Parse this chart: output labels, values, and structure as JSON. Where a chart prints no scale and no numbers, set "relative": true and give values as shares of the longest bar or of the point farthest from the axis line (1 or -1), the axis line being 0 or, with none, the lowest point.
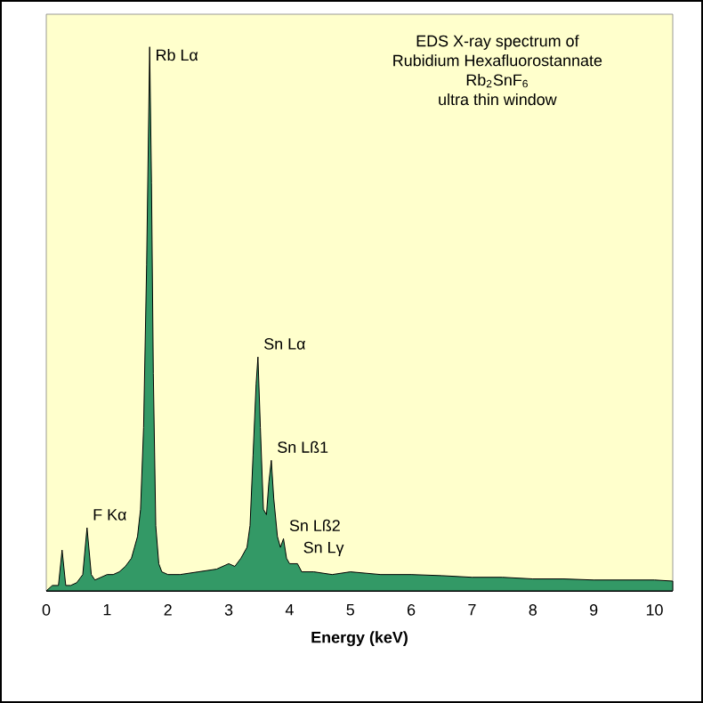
{
  "chart_data": {
    "type": "area",
    "relative": true,
    "title": "EDS X-ray spectrum of",
    "subtitle": "Rubidium Hexafluorostannate",
    "xlabel": "Energy (keV)",
    "xlim": [
      0,
      10.3
    ],
    "xticks": [
      0,
      1,
      2,
      3,
      4,
      5,
      6,
      7,
      8,
      9,
      10
    ],
    "color": "#339966",
    "grid": false,
    "annotations": [
      "Rb$_{2}$SnF$_{6}$",
      "ultra thin window",
      {
        "text": "Rb Lα",
        "x": 1.7,
        "y": 1.0
      },
      {
        "text": "Sn Lα",
        "x": 3.48,
        "y": 0.43
      },
      {
        "text": "Sn Lß1",
        "x": 3.7,
        "y": 0.24
      },
      {
        "text": "F Kα",
        "x": 0.67,
        "y": 0.116
      },
      {
        "text": "Sn Lß2",
        "x": 3.9,
        "y": 0.096
      },
      {
        "text": "Sn Lγ",
        "x": 4.13,
        "y": 0.05
      }
    ],
    "x": [
      0.0,
      0.1,
      0.2,
      0.26,
      0.32,
      0.4,
      0.5,
      0.6,
      0.67,
      0.74,
      0.8,
      0.9,
      1.0,
      1.1,
      1.2,
      1.3,
      1.4,
      1.45,
      1.5,
      1.55,
      1.6,
      1.65,
      1.7,
      1.73,
      1.76,
      1.8,
      1.85,
      1.9,
      2.0,
      2.2,
      2.5,
      2.8,
      3.0,
      3.1,
      3.2,
      3.3,
      3.35,
      3.4,
      3.45,
      3.48,
      3.52,
      3.57,
      3.62,
      3.66,
      3.7,
      3.74,
      3.8,
      3.85,
      3.9,
      3.95,
      4.0,
      4.13,
      4.2,
      4.4,
      4.7,
      5.0,
      5.5,
      6.0,
      6.5,
      7.0,
      7.5,
      8.0,
      8.5,
      9.0,
      9.5,
      10.0,
      10.3
    ],
    "values": [
      0.0,
      0.01,
      0.01,
      0.075,
      0.01,
      0.01,
      0.015,
      0.03,
      0.116,
      0.03,
      0.02,
      0.025,
      0.03,
      0.03,
      0.035,
      0.045,
      0.06,
      0.08,
      0.1,
      0.15,
      0.3,
      0.6,
      1.0,
      0.75,
      0.4,
      0.12,
      0.05,
      0.035,
      0.03,
      0.03,
      0.035,
      0.04,
      0.05,
      0.045,
      0.06,
      0.08,
      0.12,
      0.25,
      0.38,
      0.43,
      0.3,
      0.15,
      0.14,
      0.2,
      0.24,
      0.17,
      0.1,
      0.08,
      0.096,
      0.06,
      0.05,
      0.05,
      0.035,
      0.035,
      0.03,
      0.035,
      0.03,
      0.03,
      0.028,
      0.025,
      0.025,
      0.022,
      0.022,
      0.02,
      0.02,
      0.02,
      0.018
    ]
  }
}
